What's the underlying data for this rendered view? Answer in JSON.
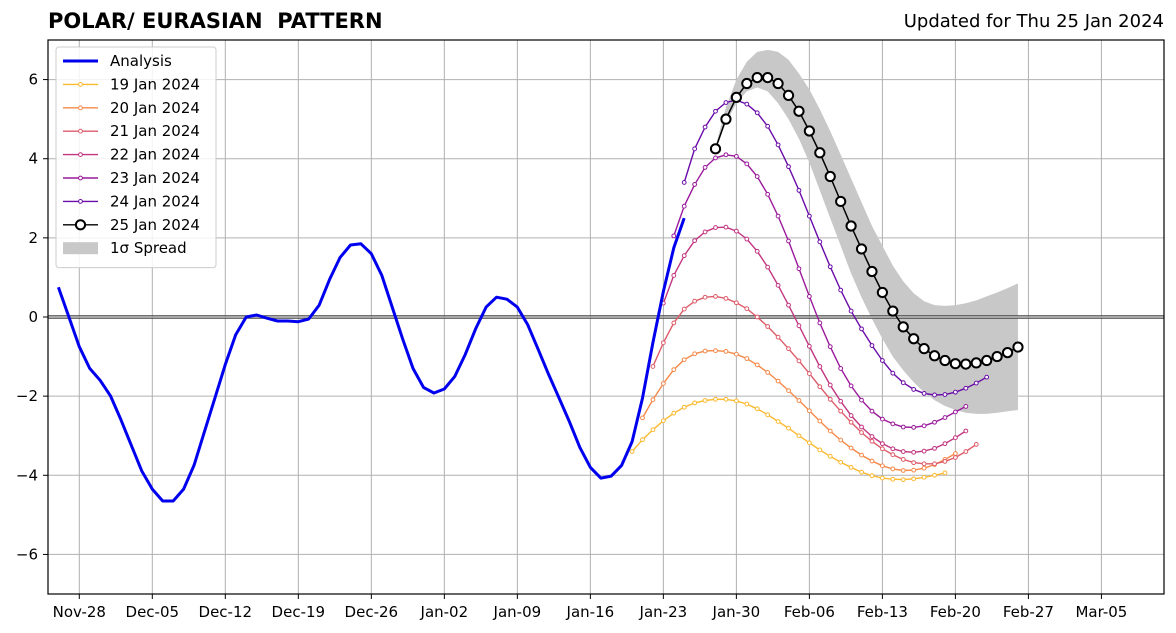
{
  "header": {
    "title": "POLAR/ EURASIAN  PATTERN",
    "updated": "Updated for Thu 25 Jan 2024"
  },
  "chart_data": {
    "type": "line",
    "title": "POLAR/ EURASIAN  PATTERN",
    "subtitle": "Updated for Thu 25 Jan 2024",
    "xlabel": "",
    "ylabel": "",
    "x_start_date": "2023-11-25",
    "xlim": [
      "2023-11-25",
      "2024-03-11"
    ],
    "ylim": [
      -7,
      7
    ],
    "grid": true,
    "legend_position": "top-left",
    "x_ticks": [
      {
        "date": "2023-11-28",
        "label": "Nov-28"
      },
      {
        "date": "2023-12-05",
        "label": "Dec-05"
      },
      {
        "date": "2023-12-12",
        "label": "Dec-12"
      },
      {
        "date": "2023-12-19",
        "label": "Dec-19"
      },
      {
        "date": "2023-12-26",
        "label": "Dec-26"
      },
      {
        "date": "2024-01-02",
        "label": "Jan-02"
      },
      {
        "date": "2024-01-09",
        "label": "Jan-09"
      },
      {
        "date": "2024-01-16",
        "label": "Jan-16"
      },
      {
        "date": "2024-01-23",
        "label": "Jan-23"
      },
      {
        "date": "2024-01-30",
        "label": "Jan-30"
      },
      {
        "date": "2024-02-06",
        "label": "Feb-06"
      },
      {
        "date": "2024-02-13",
        "label": "Feb-13"
      },
      {
        "date": "2024-02-20",
        "label": "Feb-20"
      },
      {
        "date": "2024-02-27",
        "label": "Feb-27"
      },
      {
        "date": "2024-03-05",
        "label": "Mar-05"
      }
    ],
    "y_ticks": [
      {
        "value": -6,
        "label": "−6"
      },
      {
        "value": -4,
        "label": "−4"
      },
      {
        "value": -2,
        "label": "−2"
      },
      {
        "value": 0,
        "label": "0"
      },
      {
        "value": 2,
        "label": "2"
      },
      {
        "value": 4,
        "label": "4"
      },
      {
        "value": 6,
        "label": "6"
      }
    ],
    "analysis": {
      "name": "Analysis",
      "color": "#0000ee",
      "x": [
        "2023-11-26",
        "2023-11-27",
        "2023-11-28",
        "2023-11-29",
        "2023-11-30",
        "2023-12-01",
        "2023-12-02",
        "2023-12-03",
        "2023-12-04",
        "2023-12-05",
        "2023-12-06",
        "2023-12-07",
        "2023-12-08",
        "2023-12-09",
        "2023-12-10",
        "2023-12-11",
        "2023-12-12",
        "2023-12-13",
        "2023-12-14",
        "2023-12-15",
        "2023-12-16",
        "2023-12-17",
        "2023-12-18",
        "2023-12-19",
        "2023-12-20",
        "2023-12-21",
        "2023-12-22",
        "2023-12-23",
        "2023-12-24",
        "2023-12-25",
        "2023-12-26",
        "2023-12-27",
        "2023-12-28",
        "2023-12-29",
        "2023-12-30",
        "2023-12-31",
        "2024-01-01",
        "2024-01-02",
        "2024-01-03",
        "2024-01-04",
        "2024-01-05",
        "2024-01-06",
        "2024-01-07",
        "2024-01-08",
        "2024-01-09",
        "2024-01-10",
        "2024-01-11",
        "2024-01-12",
        "2024-01-13",
        "2024-01-14",
        "2024-01-15",
        "2024-01-16",
        "2024-01-17",
        "2024-01-18",
        "2024-01-19",
        "2024-01-20",
        "2024-01-21",
        "2024-01-22",
        "2024-01-23",
        "2024-01-24",
        "2024-01-25"
      ],
      "y": [
        0.75,
        0.0,
        -0.75,
        -1.3,
        -1.6,
        -2.0,
        -2.6,
        -3.25,
        -3.9,
        -4.35,
        -4.65,
        -4.65,
        -4.35,
        -3.75,
        -2.9,
        -2.05,
        -1.2,
        -0.45,
        0.0,
        0.05,
        -0.03,
        -0.1,
        -0.1,
        -0.12,
        -0.05,
        0.3,
        0.95,
        1.5,
        1.82,
        1.85,
        1.6,
        1.05,
        0.25,
        -0.55,
        -1.3,
        -1.78,
        -1.92,
        -1.82,
        -1.5,
        -0.95,
        -0.3,
        0.25,
        0.5,
        0.45,
        0.25,
        -0.2,
        -0.82,
        -1.45,
        -2.05,
        -2.65,
        -3.3,
        -3.8,
        -4.07,
        -4.02,
        -3.75,
        -3.15,
        -2.05,
        -0.65,
        0.65,
        1.75,
        2.5
      ]
    },
    "forecasts": [
      {
        "name": "19 Jan 2024",
        "color": "#fbb930",
        "start": "2024-01-20",
        "y": [
          -3.4,
          -3.1,
          -2.85,
          -2.62,
          -2.43,
          -2.28,
          -2.17,
          -2.11,
          -2.08,
          -2.08,
          -2.12,
          -2.2,
          -2.32,
          -2.47,
          -2.64,
          -2.81,
          -3.0,
          -3.18,
          -3.36,
          -3.52,
          -3.67,
          -3.8,
          -3.92,
          -4.01,
          -4.07,
          -4.1,
          -4.11,
          -4.09,
          -4.05,
          -4.0,
          -3.94
        ]
      },
      {
        "name": "20 Jan 2024",
        "color": "#f58949",
        "start": "2024-01-21",
        "y": [
          -2.55,
          -2.09,
          -1.68,
          -1.33,
          -1.08,
          -0.93,
          -0.86,
          -0.85,
          -0.87,
          -0.94,
          -1.05,
          -1.21,
          -1.4,
          -1.62,
          -1.86,
          -2.11,
          -2.37,
          -2.63,
          -2.88,
          -3.11,
          -3.31,
          -3.49,
          -3.64,
          -3.76,
          -3.84,
          -3.88,
          -3.87,
          -3.82,
          -3.73,
          -3.6,
          -3.45
        ]
      },
      {
        "name": "21 Jan 2024",
        "color": "#de5b69",
        "start": "2024-01-22",
        "y": [
          -1.25,
          -0.65,
          -0.15,
          0.2,
          0.4,
          0.5,
          0.52,
          0.47,
          0.36,
          0.21,
          0.0,
          -0.24,
          -0.51,
          -0.8,
          -1.11,
          -1.43,
          -1.76,
          -2.08,
          -2.38,
          -2.66,
          -2.92,
          -3.14,
          -3.33,
          -3.48,
          -3.6,
          -3.68,
          -3.71,
          -3.71,
          -3.65,
          -3.55,
          -3.4,
          -3.22
        ]
      },
      {
        "name": "22 Jan 2024",
        "color": "#c23581",
        "start": "2024-01-23",
        "y": [
          0.35,
          1.05,
          1.55,
          1.93,
          2.15,
          2.26,
          2.27,
          2.17,
          1.97,
          1.66,
          1.26,
          0.8,
          0.3,
          -0.22,
          -0.74,
          -1.25,
          -1.72,
          -2.13,
          -2.49,
          -2.78,
          -3.02,
          -3.2,
          -3.33,
          -3.4,
          -3.42,
          -3.39,
          -3.32,
          -3.2,
          -3.05,
          -2.88
        ]
      },
      {
        "name": "23 Jan 2024",
        "color": "#9a1a9b",
        "start": "2024-01-24",
        "y": [
          2.05,
          2.8,
          3.35,
          3.78,
          4.02,
          4.1,
          4.06,
          3.87,
          3.55,
          3.1,
          2.55,
          1.92,
          1.22,
          0.52,
          -0.15,
          -0.75,
          -1.3,
          -1.74,
          -2.1,
          -2.38,
          -2.58,
          -2.7,
          -2.78,
          -2.79,
          -2.75,
          -2.66,
          -2.54,
          -2.4,
          -2.26
        ]
      },
      {
        "name": "24 Jan 2024",
        "color": "#6a0ca8",
        "start": "2024-01-25",
        "y": [
          3.4,
          4.25,
          4.8,
          5.2,
          5.42,
          5.48,
          5.38,
          5.16,
          4.82,
          4.35,
          3.8,
          3.2,
          2.55,
          1.9,
          1.27,
          0.68,
          0.15,
          -0.3,
          -0.72,
          -1.1,
          -1.42,
          -1.66,
          -1.83,
          -1.93,
          -1.97,
          -1.96,
          -1.9,
          -1.8,
          -1.67,
          -1.52
        ]
      }
    ],
    "forecast_latest": {
      "name": "25 Jan 2024",
      "color": "#000000",
      "start": "2024-01-28",
      "y": [
        4.25,
        5.0,
        5.55,
        5.9,
        6.05,
        6.05,
        5.9,
        5.6,
        5.2,
        4.7,
        4.15,
        3.55,
        2.92,
        2.3,
        1.72,
        1.15,
        0.62,
        0.15,
        -0.25,
        -0.55,
        -0.8,
        -0.98,
        -1.1,
        -1.18,
        -1.19,
        -1.16,
        -1.1,
        -1.0,
        -0.9,
        -0.76
      ]
    },
    "spread": {
      "name": "1σ Spread",
      "color": "#c8c8c8",
      "start": "2024-01-28",
      "upper": [
        4.3,
        5.3,
        6.0,
        6.45,
        6.7,
        6.75,
        6.7,
        6.5,
        6.15,
        5.75,
        5.25,
        4.7,
        4.1,
        3.5,
        2.9,
        2.3,
        1.8,
        1.3,
        0.9,
        0.6,
        0.4,
        0.3,
        0.28,
        0.3,
        0.35,
        0.42,
        0.52,
        0.62,
        0.73,
        0.85
      ],
      "lower": [
        4.2,
        4.9,
        5.4,
        5.7,
        5.8,
        5.7,
        5.4,
        5.0,
        4.5,
        3.9,
        3.2,
        2.5,
        1.8,
        1.1,
        0.5,
        -0.05,
        -0.55,
        -1.0,
        -1.35,
        -1.65,
        -1.9,
        -2.1,
        -2.25,
        -2.35,
        -2.42,
        -2.45,
        -2.45,
        -2.42,
        -2.38,
        -2.35
      ]
    },
    "legend": [
      {
        "label": "Analysis",
        "color": "#0000ee",
        "kind": "line-thick"
      },
      {
        "label": "19 Jan 2024",
        "color": "#fbb930",
        "kind": "line-dot"
      },
      {
        "label": "20 Jan 2024",
        "color": "#f58949",
        "kind": "line-dot"
      },
      {
        "label": "21 Jan 2024",
        "color": "#de5b69",
        "kind": "line-dot"
      },
      {
        "label": "22 Jan 2024",
        "color": "#c23581",
        "kind": "line-dot"
      },
      {
        "label": "23 Jan 2024",
        "color": "#9a1a9b",
        "kind": "line-dot"
      },
      {
        "label": "24 Jan 2024",
        "color": "#6a0ca8",
        "kind": "line-dot"
      },
      {
        "label": "25 Jan 2024",
        "color": "#000000",
        "kind": "line-circle"
      },
      {
        "label": "1σ Spread",
        "color": "#c8c8c8",
        "kind": "patch"
      }
    ]
  }
}
